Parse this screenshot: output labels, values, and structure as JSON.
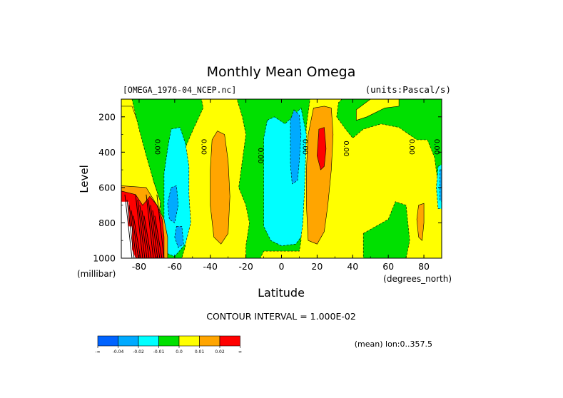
{
  "chart_data": {
    "type": "contour",
    "title": "Monthly Mean Omega",
    "source_label": "[OMEGA_1976-04_NCEP.nc]",
    "units_label": "(units:Pascal/s)",
    "xlabel": "Latitude",
    "ylabel": "Level",
    "x_units_label": "(degrees_north)",
    "y_units_label": "(millibar)",
    "xlim": [
      -90,
      90
    ],
    "ylim": [
      1000,
      100
    ],
    "x_ticks": [
      {
        "value": -80,
        "label": "-80"
      },
      {
        "value": -60,
        "label": "-60"
      },
      {
        "value": -40,
        "label": "-40"
      },
      {
        "value": -20,
        "label": "-20"
      },
      {
        "value": 0,
        "label": "0"
      },
      {
        "value": 20,
        "label": "20"
      },
      {
        "value": 40,
        "label": "40"
      },
      {
        "value": 60,
        "label": "60"
      },
      {
        "value": 80,
        "label": "80"
      }
    ],
    "y_ticks": [
      {
        "value": 200,
        "label": "200"
      },
      {
        "value": 400,
        "label": "400"
      },
      {
        "value": 600,
        "label": "600"
      },
      {
        "value": 800,
        "label": "800"
      },
      {
        "value": 1000,
        "label": "1000"
      }
    ],
    "contour_interval_label": "CONTOUR INTERVAL = 1.000E-02",
    "annotation": "(mean) lon:0..357.5",
    "contour_labels": [
      {
        "lat": -71,
        "lev": 370,
        "text": "0.00"
      },
      {
        "lat": -45,
        "lev": 370,
        "text": "0.00"
      },
      {
        "lat": -13,
        "lev": 420,
        "text": "0.00"
      },
      {
        "lat": 12,
        "lev": 370,
        "text": "0.00"
      },
      {
        "lat": 35,
        "lev": 380,
        "text": "0.00"
      },
      {
        "lat": 72,
        "lev": 370,
        "text": "0.00"
      },
      {
        "lat": 86,
        "lev": 370,
        "text": "0.00"
      }
    ],
    "colorbar": {
      "bins": [
        {
          "name": "below -0.04",
          "color": "#0063ff"
        },
        {
          "name": "-0.04 to -0.02",
          "color": "#00aaff"
        },
        {
          "name": "-0.02 to -0.01",
          "color": "#00ffff"
        },
        {
          "name": "-0.01 to 0.0",
          "color": "#00e000"
        },
        {
          "name": "0.0 to 0.01",
          "color": "#ffff00"
        },
        {
          "name": "0.01 to 0.02",
          "color": "#ffa500"
        },
        {
          "name": "above 0.02",
          "color": "#ff0000"
        }
      ],
      "tick_labels": [
        "-∞",
        "-0.04",
        "-0.02",
        "-0.01",
        "0.0",
        "0.01",
        "0.02",
        "∞"
      ]
    },
    "regions": [
      {
        "id": "sh-yellow",
        "level": "0.0 to 0.01",
        "color": "#ffff00",
        "polygon": [
          [
            -90,
            140
          ],
          [
            -84,
            140
          ],
          [
            -80,
            250
          ],
          [
            -74,
            420
          ],
          [
            -72,
            560
          ],
          [
            -68,
            680
          ],
          [
            -70,
            850
          ],
          [
            -72,
            1000
          ],
          [
            -90,
            1000
          ]
        ]
      },
      {
        "id": "sh-green-upper",
        "level": "-0.01 to 0.0",
        "color": "#00e000",
        "polygon": [
          [
            -84,
            100
          ],
          [
            -45,
            100
          ],
          [
            -44,
            150
          ],
          [
            -50,
            280
          ],
          [
            -56,
            420
          ],
          [
            -58,
            600
          ],
          [
            -58,
            800
          ],
          [
            -54,
            930
          ],
          [
            -56,
            1000
          ],
          [
            -68,
            1000
          ],
          [
            -68,
            680
          ],
          [
            -72,
            560
          ],
          [
            -76,
            420
          ],
          [
            -80,
            270
          ]
        ]
      },
      {
        "id": "sh-cyan",
        "level": "-0.02 to -0.01",
        "color": "#00ffff",
        "polygon": [
          [
            -62,
            270
          ],
          [
            -57,
            260
          ],
          [
            -54,
            350
          ],
          [
            -52,
            480
          ],
          [
            -52,
            640
          ],
          [
            -51,
            800
          ],
          [
            -54,
            920
          ],
          [
            -60,
            990
          ],
          [
            -65,
            970
          ],
          [
            -66,
            830
          ],
          [
            -66,
            700
          ],
          [
            -66,
            520
          ],
          [
            -64,
            380
          ]
        ]
      },
      {
        "id": "sh-blue",
        "level": "-0.04 to -0.02",
        "color": "#00aaff",
        "polygon": [
          [
            -62,
            600
          ],
          [
            -59,
            590
          ],
          [
            -58,
            700
          ],
          [
            -60,
            800
          ],
          [
            -63,
            780
          ],
          [
            -64,
            690
          ]
        ]
      },
      {
        "id": "sh-blue-2",
        "level": "-0.04 to -0.02",
        "color": "#00aaff",
        "polygon": [
          [
            -59,
            820
          ],
          [
            -56,
            820
          ],
          [
            -55,
            920
          ],
          [
            -58,
            940
          ],
          [
            -60,
            880
          ]
        ]
      },
      {
        "id": "sh-orange-pole",
        "level": "0.01 to 0.02",
        "color": "#ffa500",
        "polygon": [
          [
            -90,
            590
          ],
          [
            -76,
            600
          ],
          [
            -70,
            700
          ],
          [
            -66,
            780
          ],
          [
            -64,
            880
          ],
          [
            -64,
            1000
          ],
          [
            -90,
            1000
          ]
        ]
      },
      {
        "id": "sh-red-pole",
        "level": "above 0.02",
        "color": "#ff0000",
        "polygon": [
          [
            -90,
            620
          ],
          [
            -82,
            640
          ],
          [
            -78,
            700
          ],
          [
            -74,
            650
          ],
          [
            -70,
            700
          ],
          [
            -67,
            780
          ],
          [
            -66,
            880
          ],
          [
            -66,
            1000
          ],
          [
            -90,
            1000
          ]
        ]
      },
      {
        "id": "antarctica-mask",
        "level": "no data",
        "color": "#ffffff",
        "polygon": [
          [
            -90,
            680
          ],
          [
            -86,
            680
          ],
          [
            -86,
            820
          ],
          [
            -84,
            820
          ],
          [
            -84,
            950
          ],
          [
            -82,
            1000
          ],
          [
            -90,
            1000
          ]
        ]
      },
      {
        "id": "midlat-orange",
        "level": "0.01 to 0.02",
        "color": "#ffa500",
        "polygon": [
          [
            -36,
            280
          ],
          [
            -32,
            300
          ],
          [
            -30,
            450
          ],
          [
            -29,
            650
          ],
          [
            -30,
            860
          ],
          [
            -34,
            920
          ],
          [
            -38,
            880
          ],
          [
            -40,
            700
          ],
          [
            -40,
            500
          ],
          [
            -39,
            330
          ]
        ]
      },
      {
        "id": "subtrop-orange",
        "level": "0.01 to 0.02",
        "color": "#ffa500",
        "polygon": [
          [
            -17,
            150
          ],
          [
            -14,
            160
          ],
          [
            -13,
            260
          ],
          [
            -15,
            310
          ],
          [
            -18,
            280
          ],
          [
            -18,
            190
          ]
        ]
      },
      {
        "id": "tropics-green",
        "level": "-0.01 to 0.0",
        "color": "#00e000",
        "polygon": [
          [
            -25,
            100
          ],
          [
            8,
            100
          ],
          [
            16,
            100
          ],
          [
            14,
            250
          ],
          [
            13,
            450
          ],
          [
            11,
            700
          ],
          [
            11,
            900
          ],
          [
            10,
            960
          ],
          [
            -10,
            960
          ],
          [
            -12,
            1000
          ],
          [
            -20,
            1000
          ],
          [
            -20,
            930
          ],
          [
            -18,
            800
          ],
          [
            -20,
            700
          ],
          [
            -24,
            600
          ],
          [
            -22,
            450
          ],
          [
            -20,
            300
          ],
          [
            -22,
            200
          ]
        ]
      },
      {
        "id": "tropics-cyan",
        "level": "-0.02 to -0.01",
        "color": "#00ffff",
        "polygon": [
          [
            -8,
            220
          ],
          [
            -4,
            200
          ],
          [
            2,
            240
          ],
          [
            6,
            200
          ],
          [
            11,
            150
          ],
          [
            14,
            300
          ],
          [
            13,
            600
          ],
          [
            12,
            800
          ],
          [
            11,
            880
          ],
          [
            8,
            920
          ],
          [
            0,
            930
          ],
          [
            -6,
            900
          ],
          [
            -10,
            820
          ],
          [
            -10,
            640
          ],
          [
            -10,
            460
          ],
          [
            -10,
            320
          ]
        ]
      },
      {
        "id": "tropics-blue",
        "level": "-0.04 to -0.02",
        "color": "#00aaff",
        "polygon": [
          [
            7,
            160
          ],
          [
            10,
            190
          ],
          [
            11,
            300
          ],
          [
            10,
            450
          ],
          [
            9,
            560
          ],
          [
            6,
            580
          ],
          [
            5,
            470
          ],
          [
            5,
            350
          ],
          [
            5,
            220
          ]
        ]
      },
      {
        "id": "itcz-orange",
        "level": "0.01 to 0.02",
        "color": "#ffa500",
        "polygon": [
          [
            18,
            150
          ],
          [
            24,
            140
          ],
          [
            28,
            150
          ],
          [
            29,
            300
          ],
          [
            28,
            500
          ],
          [
            26,
            700
          ],
          [
            24,
            850
          ],
          [
            20,
            920
          ],
          [
            15,
            900
          ],
          [
            14,
            700
          ],
          [
            14,
            500
          ],
          [
            15,
            300
          ]
        ]
      },
      {
        "id": "itcz-red",
        "level": "above 0.02",
        "color": "#ff0000",
        "polygon": [
          [
            21,
            270
          ],
          [
            24,
            260
          ],
          [
            25,
            380
          ],
          [
            24,
            480
          ],
          [
            22,
            500
          ],
          [
            20,
            420
          ]
        ]
      },
      {
        "id": "nh-green",
        "level": "-0.01 to 0.0",
        "color": "#00e000",
        "polygon": [
          [
            34,
            100
          ],
          [
            90,
            100
          ],
          [
            90,
            580
          ],
          [
            88,
            580
          ],
          [
            86,
            430
          ],
          [
            82,
            330
          ],
          [
            76,
            330
          ],
          [
            66,
            260
          ],
          [
            56,
            240
          ],
          [
            46,
            270
          ],
          [
            40,
            320
          ],
          [
            36,
            270
          ],
          [
            31,
            200
          ],
          [
            32,
            120
          ]
        ]
      },
      {
        "id": "nh-yellow-upper",
        "level": "0.0 to 0.01",
        "color": "#ffff00",
        "polygon": [
          [
            50,
            100
          ],
          [
            66,
            100
          ],
          [
            66,
            140
          ],
          [
            58,
            150
          ],
          [
            48,
            200
          ],
          [
            42,
            220
          ],
          [
            42,
            160
          ]
        ]
      },
      {
        "id": "nh-green-lower",
        "level": "-0.01 to 0.0",
        "color": "#00e000",
        "polygon": [
          [
            46,
            860
          ],
          [
            60,
            780
          ],
          [
            64,
            680
          ],
          [
            70,
            700
          ],
          [
            72,
            900
          ],
          [
            70,
            1000
          ],
          [
            46,
            1000
          ]
        ]
      },
      {
        "id": "nh-orange-small",
        "level": "0.01 to 0.02",
        "color": "#ffa500",
        "polygon": [
          [
            77,
            700
          ],
          [
            80,
            690
          ],
          [
            80,
            800
          ],
          [
            79,
            900
          ],
          [
            77,
            880
          ],
          [
            76,
            780
          ]
        ]
      },
      {
        "id": "nh-cyan-edge",
        "level": "-0.02 to -0.01",
        "color": "#00ffff",
        "polygon": [
          [
            88,
            480
          ],
          [
            90,
            470
          ],
          [
            90,
            720
          ],
          [
            88,
            720
          ],
          [
            87,
            600
          ]
        ]
      },
      {
        "id": "nh-blue-edge",
        "level": "-0.04 to -0.02",
        "color": "#00aaff",
        "polygon": [
          [
            89,
            500
          ],
          [
            90,
            500
          ],
          [
            90,
            680
          ],
          [
            89,
            670
          ]
        ]
      }
    ]
  }
}
